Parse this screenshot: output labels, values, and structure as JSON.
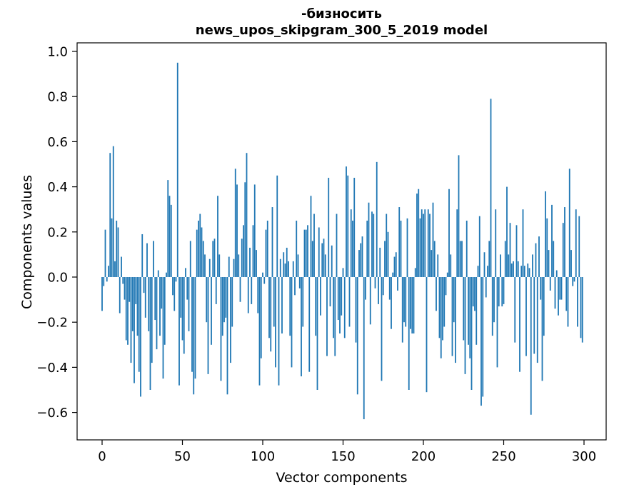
{
  "figure": {
    "title_line1": "-бизносить",
    "title_line2": "news_upos_skipgram_300_5_2019 model"
  },
  "chart_data": {
    "type": "bar",
    "title": "-бизносить\nnews_upos_skipgram_300_5_2019 model",
    "xlabel": "Vector components",
    "ylabel": "Components values",
    "x_tick_labels": [
      "0",
      "50",
      "100",
      "150",
      "200",
      "250",
      "300"
    ],
    "x_tick_values": [
      0,
      50,
      100,
      150,
      200,
      250,
      300
    ],
    "y_tick_labels": [
      "1.0",
      "0.8",
      "0.6",
      "0.4",
      "0.2",
      "0.0",
      "−0.2",
      "−0.4",
      "−0.6"
    ],
    "y_tick_values": [
      1.0,
      0.8,
      0.6,
      0.4,
      0.2,
      0.0,
      -0.2,
      -0.4,
      -0.6
    ],
    "xlim": [
      -15,
      315
    ],
    "ylim": [
      -0.72,
      1.04
    ],
    "grid": false,
    "legend": null,
    "bar_color": "#1f77b4",
    "n_components": 300,
    "values": [
      -0.15,
      -0.04,
      0.21,
      -0.02,
      0.05,
      0.55,
      0.26,
      0.58,
      0.07,
      0.25,
      0.22,
      -0.16,
      0.09,
      -0.03,
      -0.1,
      -0.28,
      -0.3,
      -0.11,
      -0.38,
      -0.24,
      -0.47,
      -0.12,
      -0.26,
      -0.42,
      -0.53,
      0.19,
      -0.07,
      -0.18,
      0.15,
      -0.24,
      -0.5,
      -0.38,
      0.16,
      -0.19,
      -0.32,
      0.03,
      -0.26,
      -0.14,
      -0.45,
      -0.3,
      0.02,
      0.43,
      0.36,
      0.32,
      -0.08,
      -0.15,
      -0.02,
      0.95,
      -0.48,
      -0.18,
      -0.28,
      -0.34,
      0.04,
      -0.1,
      -0.24,
      0.16,
      -0.42,
      -0.52,
      -0.45,
      0.21,
      0.25,
      0.28,
      0.22,
      0.16,
      0.1,
      -0.2,
      -0.43,
      0.08,
      -0.3,
      0.16,
      0.17,
      -0.12,
      0.36,
      0.1,
      -0.46,
      -0.26,
      -0.2,
      -0.18,
      -0.52,
      0.09,
      -0.38,
      -0.22,
      0.08,
      0.48,
      0.41,
      0.1,
      -0.11,
      0.17,
      0.23,
      0.42,
      0.55,
      -0.16,
      0.13,
      -0.12,
      0.23,
      0.41,
      0.12,
      -0.16,
      -0.48,
      -0.36,
      0.02,
      -0.03,
      0.21,
      0.25,
      -0.27,
      -0.33,
      0.31,
      -0.22,
      -0.4,
      0.45,
      -0.48,
      0.08,
      -0.25,
      0.11,
      0.06,
      0.13,
      0.07,
      -0.26,
      -0.4,
      0.07,
      -0.08,
      0.25,
      0.1,
      -0.05,
      -0.44,
      -0.22,
      0.21,
      0.21,
      0.23,
      -0.42,
      0.36,
      0.16,
      0.28,
      -0.26,
      -0.5,
      0.22,
      -0.17,
      0.15,
      0.17,
      0.1,
      -0.35,
      0.44,
      -0.13,
      0.14,
      -0.27,
      -0.35,
      0.28,
      -0.19,
      -0.25,
      -0.17,
      0.04,
      -0.27,
      0.49,
      0.45,
      -0.22,
      0.3,
      0.25,
      0.44,
      -0.29,
      -0.52,
      0.12,
      0.15,
      0.18,
      -0.63,
      -0.1,
      0.25,
      0.33,
      -0.21,
      0.29,
      0.28,
      -0.05,
      0.51,
      -0.12,
      0.13,
      -0.46,
      -0.08,
      0.16,
      0.28,
      0.2,
      -0.1,
      -0.23,
      0.02,
      0.09,
      0.11,
      -0.06,
      0.31,
      0.25,
      -0.29,
      -0.2,
      -0.22,
      0.26,
      -0.5,
      -0.23,
      -0.25,
      -0.25,
      0.04,
      0.37,
      0.39,
      0.26,
      0.3,
      0.28,
      0.3,
      -0.51,
      0.3,
      0.28,
      0.12,
      0.33,
      0.16,
      -0.15,
      0.1,
      -0.27,
      -0.36,
      -0.28,
      -0.22,
      -0.08,
      0.02,
      0.39,
      0.1,
      -0.35,
      -0.2,
      -0.38,
      0.3,
      0.54,
      0.16,
      0.16,
      -0.28,
      -0.43,
      0.25,
      -0.3,
      -0.36,
      -0.5,
      -0.13,
      -0.15,
      -0.3,
      0.05,
      0.27,
      -0.57,
      -0.53,
      0.11,
      -0.09,
      0.05,
      0.16,
      0.79,
      -0.26,
      -0.2,
      0.3,
      -0.4,
      -0.13,
      0.1,
      -0.13,
      -0.12,
      0.16,
      0.4,
      0.1,
      0.24,
      0.06,
      0.07,
      -0.29,
      0.23,
      0.07,
      -0.42,
      0.05,
      0.3,
      0.05,
      -0.35,
      0.06,
      0.04,
      -0.61,
      0.1,
      -0.34,
      0.15,
      -0.38,
      0.18,
      -0.1,
      -0.46,
      -0.26,
      0.38,
      0.26,
      0.12,
      -0.06,
      0.32,
      0.16,
      -0.14,
      0.03,
      -0.17,
      -0.1,
      -0.1,
      0.24,
      0.31,
      -0.15,
      -0.22,
      0.48,
      0.12,
      -0.04,
      -0.02,
      0.3,
      -0.22,
      0.27,
      -0.27,
      -0.29
    ]
  }
}
